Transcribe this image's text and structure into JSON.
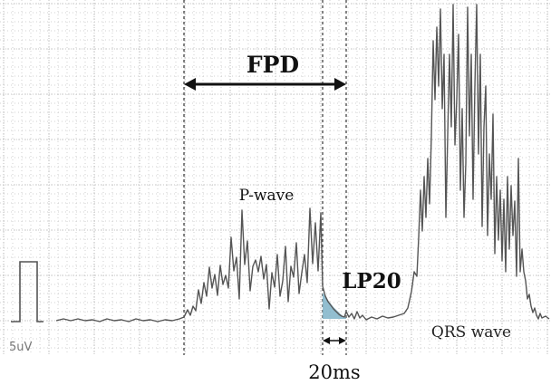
{
  "chart_data": {
    "type": "line",
    "title": "",
    "xlabel": "",
    "ylabel": "",
    "annotations": {
      "fpd": "FPD",
      "p_wave": "P-wave",
      "lp20": "LP20",
      "qrs_wave": "QRS wave",
      "interval": "20ms",
      "calibration": "5uV"
    },
    "grid": true,
    "colors": {
      "trace": "#555555",
      "grid_dot": "#c4c4c4",
      "marker_line": "#444444",
      "lp20_fill": "#7fb3c8",
      "arrow": "#111111"
    }
  }
}
